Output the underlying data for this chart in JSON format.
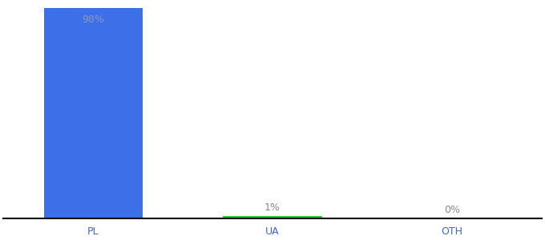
{
  "categories": [
    "PL",
    "UA",
    "OTH"
  ],
  "values": [
    98,
    1,
    0
  ],
  "bar_colors": [
    "#3d6fe8",
    "#2ecc40",
    "#3d6fe8"
  ],
  "labels": [
    "98%",
    "1%",
    "0%"
  ],
  "ylabel": "",
  "xlabel": "",
  "ylim": [
    0,
    100
  ],
  "background_color": "#ffffff",
  "label_color_inside": "#8899bb",
  "label_color_outside": "#888888",
  "axis_line_color": "#111111",
  "tick_color": "#4466bb",
  "label_fontsize": 9,
  "tick_fontsize": 9
}
